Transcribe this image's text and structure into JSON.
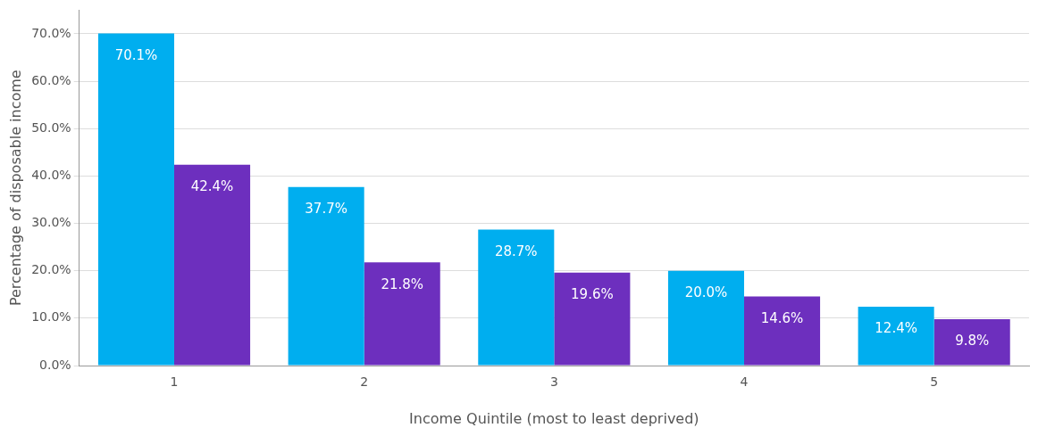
{
  "chart_data": {
    "type": "bar",
    "xlabel": "Income Quintile (most to least deprived)",
    "ylabel": "Percentage of disposable income",
    "categories": [
      "1",
      "2",
      "3",
      "4",
      "5"
    ],
    "series": [
      {
        "color": "#00aeef",
        "values": [
          70.1,
          37.7,
          28.7,
          20.0,
          12.4
        ],
        "value_labels": [
          "70.1%",
          "37.7%",
          "28.7%",
          "20.0%",
          "12.4%"
        ]
      },
      {
        "color": "#6d2fbe",
        "values": [
          42.4,
          21.8,
          19.6,
          14.6,
          9.8
        ],
        "value_labels": [
          "42.4%",
          "21.8%",
          "19.6%",
          "14.6%",
          "9.8%"
        ]
      }
    ],
    "ylim": [
      0,
      75
    ],
    "yticks": [
      {
        "value": 0,
        "label": "0.0%"
      },
      {
        "value": 10,
        "label": "10.0%"
      },
      {
        "value": 20,
        "label": "20.0%"
      },
      {
        "value": 30,
        "label": "30.0%"
      },
      {
        "value": 40,
        "label": "40.0%"
      },
      {
        "value": 50,
        "label": "50.0%"
      },
      {
        "value": 60,
        "label": "60.0%"
      },
      {
        "value": 70,
        "label": "70.0%"
      }
    ],
    "grid": "y",
    "legend": false
  }
}
